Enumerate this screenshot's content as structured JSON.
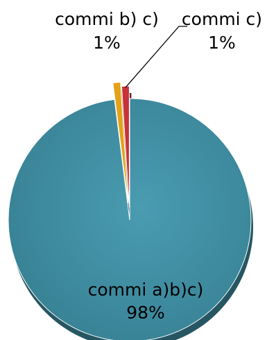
{
  "chart_data": {
    "type": "pie",
    "style": "3d-exploded",
    "legend": "none",
    "categories": [
      "commi a)b)c)",
      "commi b) c)",
      "commi c)"
    ],
    "values": [
      98,
      1,
      1
    ],
    "value_labels": [
      "98%",
      "1%",
      "1%"
    ],
    "colors": [
      "#3F8FA3",
      "#E3A21A",
      "#C8323A"
    ]
  }
}
